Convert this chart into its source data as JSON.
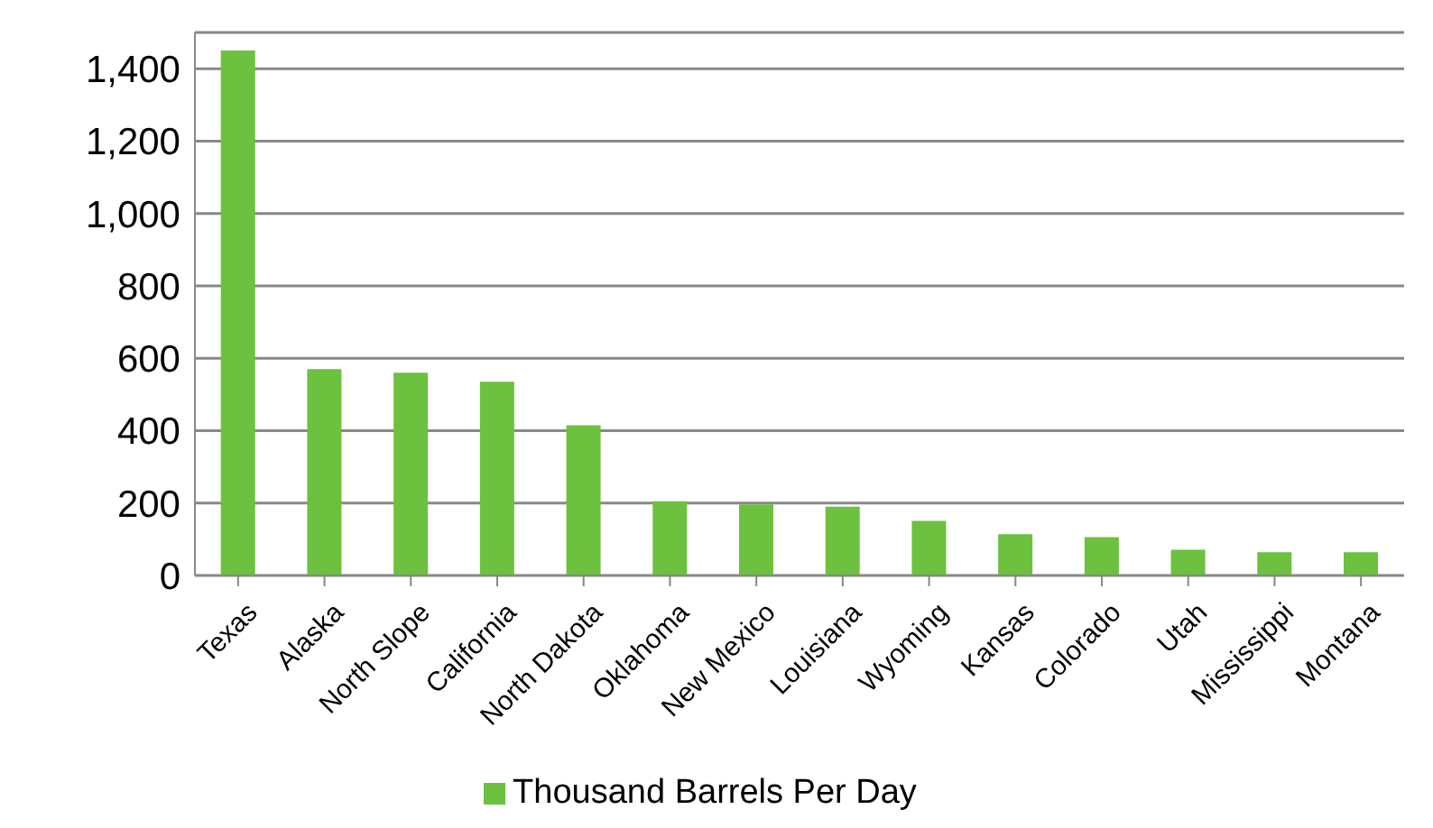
{
  "chart_data": {
    "type": "bar",
    "categories": [
      "Texas",
      "Alaska",
      "North Slope",
      "California",
      "North Dakota",
      "Oklahoma",
      "New Mexico",
      "Louisiana",
      "Wyoming",
      "Kansas",
      "Colorado",
      "Utah",
      "Mississippi",
      "Montana"
    ],
    "series": [
      {
        "name": "Thousand Barrels Per Day",
        "color": "#6cc13e",
        "values": [
          1450,
          570,
          560,
          535,
          415,
          205,
          196,
          190,
          151,
          114,
          106,
          71,
          64,
          64
        ]
      }
    ],
    "ylim": [
      0,
      1500
    ],
    "yticks": [
      {
        "value": 0,
        "label": "0"
      },
      {
        "value": 200,
        "label": "200"
      },
      {
        "value": 400,
        "label": "400"
      },
      {
        "value": 600,
        "label": "600"
      },
      {
        "value": 800,
        "label": "800"
      },
      {
        "value": 1000,
        "label": "1,000"
      },
      {
        "value": 1200,
        "label": "1,200"
      },
      {
        "value": 1400,
        "label": "1,400"
      }
    ],
    "grid": "y",
    "legend": "bottom"
  }
}
